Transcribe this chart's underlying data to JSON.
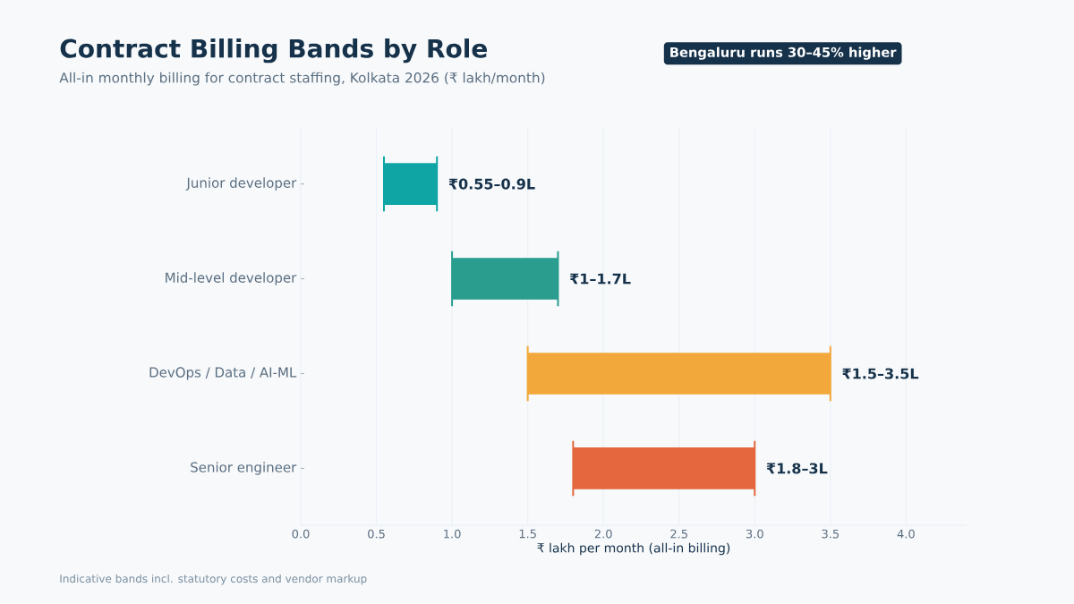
{
  "chart_data": {
    "type": "bar",
    "orientation": "horizontal",
    "title": "Contract Billing Bands by Role",
    "subtitle": "All-in monthly billing for contract staffing, Kolkata 2026 (₹ lakh/month)",
    "xlabel": "₹ lakh per month (all-in billing)",
    "annotations": [
      "Bengaluru runs 30–45% higher",
      "Indicative bands incl. statutory costs and vendor markup"
    ],
    "categories": [
      "Junior developer",
      "Mid-level developer",
      "DevOps / Data / AI-ML",
      "Senior engineer"
    ],
    "base": [
      0.55,
      1.0,
      1.5,
      1.8
    ],
    "values": [
      0.35,
      0.7,
      2.0,
      1.2
    ],
    "colors": [
      "#0fa5a5",
      "#2a9d8f",
      "#f3a83b",
      "#e5673d"
    ],
    "value_labels": [
      "₹0.55–0.9L",
      "₹1–1.7L",
      "₹1.5–3.5L",
      "₹1.8–3L"
    ],
    "xlim": [
      0,
      4.4
    ],
    "xticks": [
      {
        "value": 0,
        "label": "0.0"
      },
      {
        "value": 0.5,
        "label": "0.5"
      },
      {
        "value": 1,
        "label": "1.0"
      },
      {
        "value": 1.5,
        "label": "1.5"
      },
      {
        "value": 2,
        "label": "2.0"
      },
      {
        "value": 2.5,
        "label": "2.5"
      },
      {
        "value": 3,
        "label": "3.0"
      },
      {
        "value": 3.5,
        "label": "3.5"
      },
      {
        "value": 4,
        "label": "4.0"
      }
    ],
    "grid": "x"
  }
}
